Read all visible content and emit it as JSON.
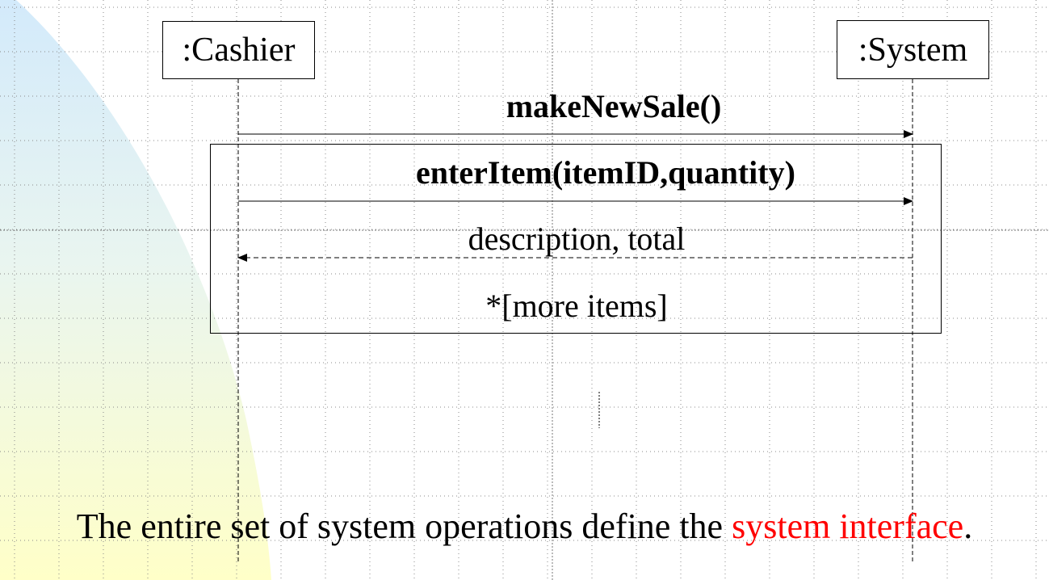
{
  "lifelines": {
    "cashier": ":Cashier",
    "system": ":System"
  },
  "messages": {
    "make_new_sale": "makeNewSale()",
    "enter_item": "enterItem(itemID,quantity)",
    "return_value": "description, total"
  },
  "loop": {
    "guard": "*[more items]"
  },
  "caption": {
    "prefix": "The entire set of system operations define the ",
    "highlight": "system interface",
    "suffix": "."
  },
  "colors": {
    "highlight": "#ff0000",
    "swoosh_top": "#d6ecfb",
    "swoosh_bottom": "#ffffcc"
  }
}
